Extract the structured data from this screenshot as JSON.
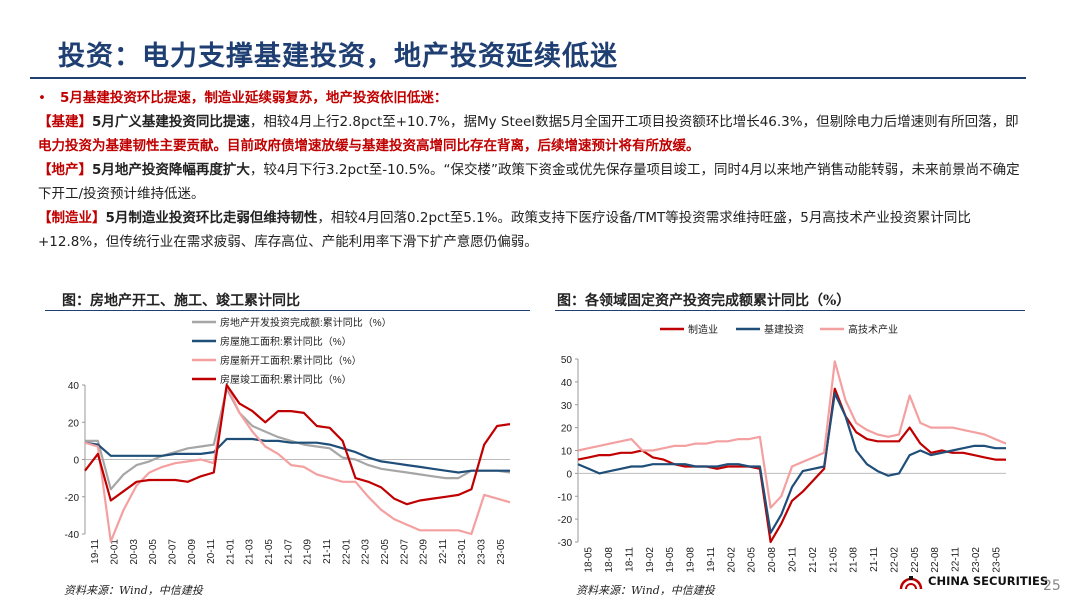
{
  "slide": {
    "title": "投资：电力支撑基建投资，地产投资延续低迷",
    "page_number": "25",
    "logo_text": "CHINA SECURITIES"
  },
  "body": {
    "bullet": "•",
    "lead": "5月基建投资环比提速，制造业延续弱复苏，地产投资依旧低迷：",
    "infra_tag": "【基建】",
    "infra_head": "5月广义基建投资同比提速",
    "infra_text1": "，相较4月上行2.8pct至+10.7%，据My Steel数据5月全国开工项目投资额环比增长46.3%，但剔除电力后增速则有所回落，即",
    "infra_red": "电力投资为基建韧性主要贡献。目前政府债增速放缓与基建投资高增同比存在背离，后续增速预计将有所放缓。",
    "estate_tag": "【地产】",
    "estate_head": "5月地产投资降幅再度扩大",
    "estate_text": "，较4月下行3.2pct至-10.5%。“保交楼”政策下资金或优先保存量项目竣工，同时4月以来地产销售动能转弱，未来前景尚不确定下开工/投资预计维持低迷。",
    "mfg_tag": "【制造业】",
    "mfg_head": "5月制造业投资环比走弱但维持韧性",
    "mfg_text": "，相较4月回落0.2pct至5.1%。政策支持下医疗设备/TMT等投资需求维持旺盛，5月高技术产业投资累计同比+12.8%，但传统行业在需求疲弱、库存高位、产能利用率下滑下扩产意愿仍偏弱。"
  },
  "left_chart": {
    "caption": "图：房地产开工、施工、竣工累计同比",
    "source": "资料来源：Wind，中信建投"
  },
  "right_chart": {
    "caption": "图：各领域固定资产投资完成额累计同比（%）",
    "source": "资料来源：Wind，中信建投"
  },
  "chart_data": [
    {
      "type": "line",
      "title": "图：房地产开工、施工、竣工累计同比",
      "ylim": [
        -40,
        40
      ],
      "yticks": [
        -40,
        -20,
        0,
        20,
        40
      ],
      "x_tick_labels": [
        "19-11",
        "20-01",
        "20-03",
        "20-05",
        "20-07",
        "20-09",
        "20-11",
        "21-01",
        "21-03",
        "21-05",
        "21-07",
        "21-09",
        "21-11",
        "22-01",
        "22-03",
        "22-05",
        "22-07",
        "22-09",
        "22-11",
        "23-01",
        "23-03",
        "23-05"
      ],
      "series": [
        {
          "name": "房地产开发投资完成额:累计同比（%）",
          "color": "#a6a6a6",
          "values": [
            10,
            10,
            -16,
            -8,
            -3,
            -1,
            2,
            4,
            6,
            7,
            8,
            38,
            25,
            18,
            15,
            12,
            10,
            8,
            7,
            6,
            1,
            0,
            -3,
            -5,
            -6,
            -7,
            -8,
            -9,
            -10,
            -10,
            -6,
            -6,
            -6,
            -7
          ]
        },
        {
          "name": "房屋施工面积:累计同比（%）",
          "color": "#1f4e79",
          "values": [
            9,
            8,
            2,
            2,
            2,
            2,
            2,
            3,
            3,
            3,
            4,
            11,
            11,
            11,
            10,
            10,
            9,
            9,
            9,
            8,
            6,
            4,
            1,
            -1,
            -2,
            -3,
            -4,
            -5,
            -6,
            -7,
            -6,
            -6,
            -6,
            -6
          ]
        },
        {
          "name": "房屋新开工面积:累计同比（%）",
          "color": "#f4a0a0",
          "values": [
            9,
            7,
            -44,
            -27,
            -14,
            -7,
            -4,
            -2,
            -1,
            0,
            -2,
            40,
            25,
            15,
            7,
            3,
            -3,
            -4,
            -8,
            -10,
            -12,
            -12,
            -20,
            -27,
            -32,
            -35,
            -38,
            -38,
            -38,
            -38,
            -40,
            -19,
            -21,
            -23
          ]
        },
        {
          "name": "房屋竣工面积:累计同比（%）",
          "color": "#c00000",
          "values": [
            -6,
            3,
            -22,
            -17,
            -12,
            -11,
            -11,
            -11,
            -12,
            -9,
            -7,
            40,
            30,
            26,
            20,
            26,
            26,
            25,
            18,
            17,
            10,
            -10,
            -12,
            -15,
            -21,
            -24,
            -22,
            -21,
            -20,
            -19,
            -16,
            8,
            18,
            19
          ]
        }
      ]
    },
    {
      "type": "line",
      "title": "图：各领域固定资产投资完成额累计同比（%）",
      "ylim": [
        -30,
        50
      ],
      "yticks": [
        -30,
        -20,
        -10,
        0,
        10,
        20,
        30,
        40,
        50
      ],
      "x_tick_labels": [
        "18-05",
        "18-08",
        "18-11",
        "19-02",
        "19-05",
        "19-08",
        "19-11",
        "20-02",
        "20-05",
        "20-08",
        "20-11",
        "21-02",
        "21-05",
        "21-08",
        "21-11",
        "22-02",
        "22-05",
        "22-08",
        "22-11",
        "23-02",
        "23-05"
      ],
      "series": [
        {
          "name": "制造业",
          "color": "#c00000",
          "values": [
            6,
            7,
            8,
            8,
            9,
            9,
            10,
            7,
            6,
            4,
            3,
            3,
            3,
            2,
            3,
            3,
            3,
            2,
            -30,
            -22,
            -12,
            -8,
            -3,
            2,
            37,
            25,
            18,
            15,
            14,
            14,
            14,
            20,
            13,
            9,
            10,
            9,
            9,
            8,
            7,
            6,
            6
          ]
        },
        {
          "name": "基建投资",
          "color": "#1f4e79",
          "values": [
            4,
            2,
            0,
            1,
            2,
            3,
            3,
            4,
            4,
            4,
            4,
            3,
            3,
            3,
            4,
            4,
            3,
            3,
            -26,
            -18,
            -6,
            1,
            2,
            3,
            35,
            25,
            10,
            4,
            1,
            -1,
            0,
            8,
            10,
            8,
            9,
            10,
            11,
            12,
            12,
            11,
            11
          ]
        },
        {
          "name": "高技术产业",
          "color": "#f4a0a0",
          "values": [
            10,
            11,
            12,
            13,
            14,
            15,
            10,
            10,
            11,
            12,
            12,
            13,
            13,
            14,
            14,
            15,
            15,
            16,
            -15,
            -10,
            3,
            5,
            7,
            9,
            49,
            32,
            22,
            19,
            17,
            16,
            17,
            34,
            22,
            20,
            20,
            20,
            19,
            18,
            17,
            15,
            13
          ]
        }
      ]
    }
  ]
}
